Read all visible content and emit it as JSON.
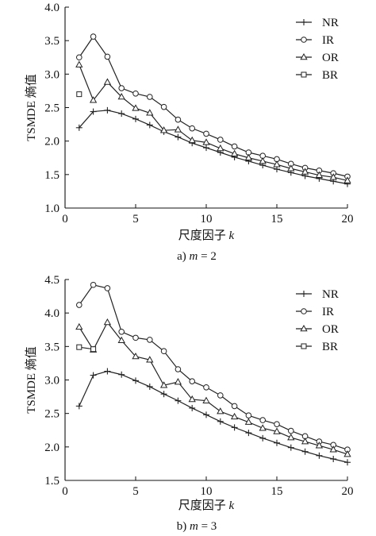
{
  "chart_data": [
    {
      "type": "line",
      "id": "a",
      "caption": "a) m = 2",
      "caption_prefix": "a) ",
      "caption_var": "m",
      "caption_suffix": " = 2",
      "xlabel_text": "尺度因子 ",
      "xlabel_var": "k",
      "ylabel": "TSMDE 熵值",
      "xlim": [
        0,
        20
      ],
      "ylim": [
        1.0,
        4.0
      ],
      "xticks": [
        0,
        5,
        10,
        15,
        20
      ],
      "yticks": [
        1.0,
        1.5,
        2.0,
        2.5,
        3.0,
        3.5,
        4.0
      ],
      "ytick_labels": [
        "1.0",
        "1.5",
        "2.0",
        "2.5",
        "3.0",
        "3.5",
        "4.0"
      ],
      "legend_position": "top-right",
      "grid": false,
      "x": [
        1,
        2,
        3,
        4,
        5,
        6,
        7,
        8,
        9,
        10,
        11,
        12,
        13,
        14,
        15,
        16,
        17,
        18,
        19,
        20
      ],
      "series": [
        {
          "name": "NR",
          "marker": "plus",
          "values": [
            2.2,
            2.44,
            2.46,
            2.41,
            2.33,
            2.24,
            2.14,
            2.06,
            1.97,
            1.9,
            1.83,
            1.76,
            1.7,
            1.64,
            1.58,
            1.53,
            1.48,
            1.44,
            1.4,
            1.36
          ]
        },
        {
          "name": "IR",
          "marker": "circle",
          "values": [
            3.25,
            3.56,
            3.26,
            2.79,
            2.71,
            2.66,
            2.51,
            2.32,
            2.19,
            2.11,
            2.02,
            1.92,
            1.83,
            1.78,
            1.73,
            1.66,
            1.6,
            1.56,
            1.52,
            1.47
          ]
        },
        {
          "name": "OR",
          "marker": "triangle",
          "values": [
            3.14,
            2.61,
            2.88,
            2.66,
            2.49,
            2.42,
            2.16,
            2.17,
            2.01,
            1.98,
            1.89,
            1.81,
            1.75,
            1.7,
            1.65,
            1.59,
            1.54,
            1.49,
            1.46,
            1.41
          ]
        },
        {
          "name": "BR",
          "marker": "square",
          "values": [
            2.7,
            null,
            null,
            null,
            null,
            null,
            null,
            null,
            null,
            null,
            null,
            null,
            null,
            null,
            null,
            null,
            null,
            null,
            null,
            null
          ]
        }
      ]
    },
    {
      "type": "line",
      "id": "b",
      "caption": "b) m = 3",
      "caption_prefix": "b) ",
      "caption_var": "m",
      "caption_suffix": " = 3",
      "xlabel_text": "尺度因子 ",
      "xlabel_var": "k",
      "ylabel": "TSMDE 熵值",
      "xlim": [
        0,
        20
      ],
      "ylim": [
        1.5,
        4.5
      ],
      "xticks": [
        0,
        5,
        10,
        15,
        20
      ],
      "yticks": [
        1.5,
        2.0,
        2.5,
        3.0,
        3.5,
        4.0,
        4.5
      ],
      "ytick_labels": [
        "1.5",
        "2.0",
        "2.5",
        "3.0",
        "3.5",
        "4.0",
        "4.5"
      ],
      "legend_position": "top-right",
      "grid": false,
      "x": [
        1,
        2,
        3,
        4,
        5,
        6,
        7,
        8,
        9,
        10,
        11,
        12,
        13,
        14,
        15,
        16,
        17,
        18,
        19,
        20
      ],
      "series": [
        {
          "name": "NR",
          "marker": "plus",
          "values": [
            2.61,
            3.07,
            3.13,
            3.08,
            2.99,
            2.9,
            2.79,
            2.69,
            2.58,
            2.48,
            2.38,
            2.29,
            2.21,
            2.13,
            2.06,
            1.99,
            1.93,
            1.87,
            1.82,
            1.77
          ]
        },
        {
          "name": "IR",
          "marker": "circle",
          "values": [
            4.12,
            4.42,
            4.37,
            3.72,
            3.63,
            3.6,
            3.43,
            3.16,
            2.98,
            2.89,
            2.77,
            2.61,
            2.47,
            2.4,
            2.34,
            2.24,
            2.16,
            2.08,
            2.03,
            1.96
          ]
        },
        {
          "name": "OR",
          "marker": "triangle",
          "values": [
            3.79,
            3.45,
            3.86,
            3.59,
            3.35,
            3.3,
            2.92,
            2.97,
            2.71,
            2.69,
            2.53,
            2.45,
            2.37,
            2.28,
            2.23,
            2.14,
            2.08,
            2.02,
            1.96,
            1.89
          ]
        },
        {
          "name": "BR",
          "marker": "square",
          "values": [
            3.49,
            3.46,
            null,
            null,
            null,
            null,
            null,
            null,
            null,
            null,
            null,
            null,
            null,
            null,
            null,
            null,
            null,
            null,
            null,
            null
          ]
        }
      ]
    }
  ]
}
